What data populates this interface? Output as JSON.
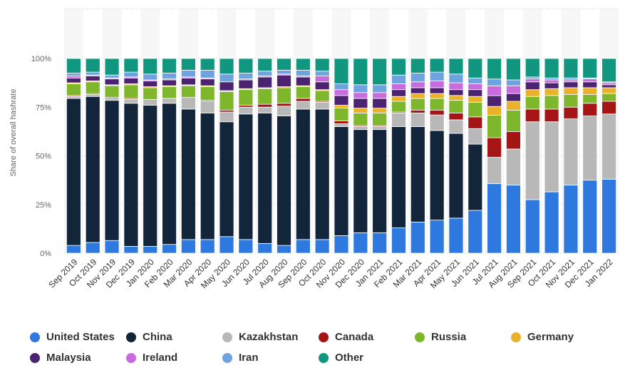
{
  "chart_data": {
    "type": "bar",
    "stacked": true,
    "ylabel": "Share of overall hashrate",
    "ylim": [
      0,
      100
    ],
    "yticks": [
      "0%",
      "25%",
      "50%",
      "75%",
      "100%"
    ],
    "grid": true,
    "legend_placement": "bottom",
    "categories": [
      "Sep 2019",
      "Oct 2019",
      "Nov 2019",
      "Dec 2019",
      "Jan 2020",
      "Feb 2020",
      "Mar 2020",
      "Apr 2020",
      "May 2020",
      "Jun 2020",
      "Jul 2020",
      "Aug 2020",
      "Sep 2020",
      "Oct 2020",
      "Nov 2020",
      "Dec 2020",
      "Jan 2021",
      "Feb 2021",
      "Mar 2021",
      "Apr 2021",
      "May 2021",
      "Jun 2021",
      "Jul 2021",
      "Aug 2021",
      "Sep 2021",
      "Oct 2021",
      "Nov 2021",
      "Dec 2021",
      "Jan 2022"
    ],
    "series": [
      {
        "name": "United States",
        "color": "#2d79e0",
        "values": [
          4,
          5.5,
          6.5,
          3.5,
          3.5,
          4.5,
          7,
          7,
          8.5,
          7,
          5,
          4,
          7,
          7,
          9,
          10.5,
          10.5,
          13,
          16,
          17,
          18,
          22,
          35.5,
          35,
          27.5,
          31.5,
          35,
          37.5,
          38
        ]
      },
      {
        "name": "China",
        "color": "#13253b",
        "values": [
          75.5,
          75,
          72,
          73.5,
          72.5,
          72.5,
          67,
          65,
          59,
          64.5,
          67,
          66.5,
          67,
          67,
          56,
          53,
          53,
          52,
          49,
          46,
          43.5,
          34,
          0,
          0,
          0,
          0,
          0,
          0,
          0
        ]
      },
      {
        "name": "Kazakhstan",
        "color": "#b8b8b8",
        "values": [
          1,
          1,
          1,
          2,
          3,
          2.5,
          6,
          6,
          5,
          3.5,
          3,
          5,
          4,
          3.5,
          1.5,
          1.5,
          1.5,
          7,
          7,
          8,
          7,
          8,
          13.5,
          18.5,
          40,
          36,
          34,
          33,
          33.5
        ]
      },
      {
        "name": "Canada",
        "color": "#a51515",
        "values": [
          0.5,
          0.5,
          0.5,
          0.5,
          0,
          0,
          0,
          0.5,
          1,
          1,
          1.5,
          1.5,
          1.5,
          0.5,
          1.5,
          0.5,
          0.5,
          0.5,
          1.5,
          2.5,
          3.5,
          6,
          10,
          9,
          6.5,
          6.5,
          6,
          6.5,
          6.5
        ]
      },
      {
        "name": "Russia",
        "color": "#7eb72b",
        "values": [
          6,
          6,
          6,
          7,
          6,
          6,
          6,
          7,
          9.5,
          8,
          8,
          8,
          6,
          5.5,
          6.5,
          6.5,
          6.5,
          5.5,
          6,
          6,
          6.5,
          7.5,
          11.5,
          11,
          6.5,
          7,
          6.5,
          4.5,
          4
        ]
      },
      {
        "name": "Germany",
        "color": "#ebb12a",
        "values": [
          0.5,
          0.5,
          0.5,
          0.5,
          0.5,
          0.5,
          0.5,
          0.5,
          0.5,
          0.5,
          0.5,
          0.5,
          0.5,
          0.5,
          1.5,
          2.5,
          2.5,
          2.5,
          2.5,
          2.5,
          2.5,
          3,
          4.5,
          4.5,
          3.5,
          3.5,
          3.5,
          3.5,
          3
        ]
      },
      {
        "name": "Malaysia",
        "color": "#4c2370",
        "values": [
          2.5,
          2.5,
          3,
          3,
          3,
          3,
          3.5,
          3.5,
          4.5,
          4.5,
          5.5,
          6,
          4.5,
          4,
          5,
          5,
          5,
          3.5,
          3,
          3,
          3,
          3.5,
          5.5,
          4,
          4,
          3,
          3,
          3,
          1.5
        ]
      },
      {
        "name": "Ireland",
        "color": "#c86bde",
        "values": [
          1,
          0.5,
          0.5,
          0.5,
          0.5,
          0.5,
          0.5,
          0.5,
          0,
          0.5,
          0.5,
          0.5,
          0.5,
          3,
          3,
          3,
          3,
          3,
          3,
          3.5,
          3.5,
          3,
          5,
          4,
          1.5,
          1.5,
          1,
          1.5,
          1
        ]
      },
      {
        "name": "Iran",
        "color": "#6fa3e0",
        "values": [
          1.5,
          1.5,
          1.5,
          2.5,
          3,
          3,
          3.5,
          4,
          4,
          3,
          2.5,
          2,
          3,
          2.5,
          3,
          4,
          4,
          4.5,
          4.5,
          4.5,
          4.5,
          3,
          3.5,
          3,
          1,
          1,
          1,
          0.5,
          0.5
        ]
      },
      {
        "name": "Other",
        "color": "#11967f",
        "values": [
          7.5,
          7,
          8.5,
          7,
          8,
          7.5,
          6,
          6,
          8,
          7.5,
          6.5,
          6,
          6,
          6.5,
          13,
          13.5,
          13.5,
          8.5,
          7.5,
          7,
          8,
          10,
          10.5,
          11,
          9.5,
          10,
          10,
          10,
          12
        ]
      }
    ]
  }
}
